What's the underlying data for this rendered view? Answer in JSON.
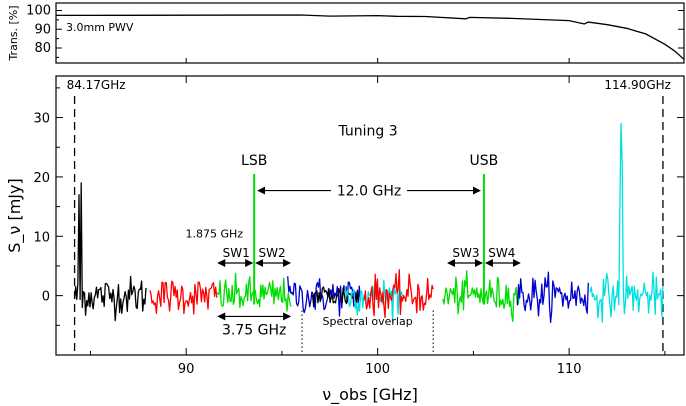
{
  "chart_data": [
    {
      "type": "line",
      "panel": "transmission",
      "ylabel": "Trans. [%]",
      "annotation": "3.0mm PWV",
      "ylim": [
        72,
        104
      ],
      "yticks": [
        80,
        90,
        100
      ],
      "ytick_labels": [
        "80",
        "90",
        "100"
      ],
      "xlim": [
        83.2,
        116.0
      ],
      "points": [
        [
          83.2,
          97.4
        ],
        [
          90,
          97.5
        ],
        [
          96,
          97.6
        ],
        [
          97.5,
          97.0
        ],
        [
          100,
          97.3
        ],
        [
          101.0,
          96.9
        ],
        [
          102.5,
          96.8
        ],
        [
          104.6,
          95.6
        ],
        [
          104.8,
          96.3
        ],
        [
          107,
          95.8
        ],
        [
          110,
          94.6
        ],
        [
          110.8,
          92.8
        ],
        [
          111.0,
          93.8
        ],
        [
          112,
          92.4
        ],
        [
          113,
          90.5
        ],
        [
          114,
          87.5
        ],
        [
          115,
          82.0
        ],
        [
          115.5,
          78.5
        ],
        [
          116.0,
          74.0
        ]
      ]
    },
    {
      "type": "line",
      "panel": "spectrum",
      "xlabel": "ν_obs [GHz]",
      "ylabel": "S_ν [mJy]",
      "xlim": [
        83.2,
        116.0
      ],
      "ylim": [
        -10,
        37
      ],
      "xticks": [
        90,
        100,
        110
      ],
      "xtick_labels": [
        "90",
        "100",
        "110"
      ],
      "yticks": [
        0,
        10,
        20,
        30
      ],
      "ytick_labels": [
        "0",
        "10",
        "20",
        "30"
      ],
      "band_edges": [
        {
          "x": 84.17,
          "label": "84.17GHz"
        },
        {
          "x": 114.9,
          "label": "114.90GHz"
        }
      ],
      "annotations": {
        "tuning": "Tuning 3",
        "lsb": "LSB",
        "usb": "USB",
        "if_separation": "12.0 GHz",
        "subband_width": "1.875 GHz",
        "sw1": "SW1",
        "sw2": "SW2",
        "sw3": "SW3",
        "sw4": "SW4",
        "lsb_width": "3.75 GHz",
        "overlap": "Spectral overlap"
      },
      "lsb_line_x": 93.55,
      "usb_line_x": 105.55,
      "overlap_range": [
        96.05,
        102.9
      ],
      "segments": [
        {
          "color": "#000000",
          "x_start": 84.17,
          "x_end": 87.9,
          "noise": 1.6,
          "spikes": [
            [
              84.5,
              19
            ],
            [
              84.55,
              -2
            ],
            [
              84.4,
              17
            ]
          ]
        },
        {
          "color": "#ff0000",
          "x_start": 88.1,
          "x_end": 91.6,
          "noise": 1.5,
          "spikes": []
        },
        {
          "color": "#00dd00",
          "x_start": 91.6,
          "x_end": 95.5,
          "noise": 1.5,
          "spikes": []
        },
        {
          "color": "#0000cc",
          "x_start": 95.3,
          "x_end": 99.1,
          "noise": 1.5,
          "spikes": []
        },
        {
          "color": "#000000",
          "x_start": 96.6,
          "x_end": 99.0,
          "noise": 1.1,
          "spikes": []
        },
        {
          "color": "#00e0e0",
          "x_start": 98.3,
          "x_end": 101.3,
          "noise": 1.5,
          "spikes": []
        },
        {
          "color": "#ff0000",
          "x_start": 99.3,
          "x_end": 102.9,
          "noise": 1.6,
          "spikes": []
        },
        {
          "color": "#00dd00",
          "x_start": 103.4,
          "x_end": 107.4,
          "noise": 1.5,
          "spikes": []
        },
        {
          "color": "#0000cc",
          "x_start": 107.3,
          "x_end": 111.0,
          "noise": 1.7,
          "spikes": []
        },
        {
          "color": "#00e0e0",
          "x_start": 111.1,
          "x_end": 114.9,
          "noise": 1.7,
          "spikes": [
            [
              112.7,
              29
            ],
            [
              112.75,
              22
            ],
            [
              112.65,
              15
            ],
            [
              114.85,
              -3.5
            ]
          ]
        }
      ]
    }
  ]
}
